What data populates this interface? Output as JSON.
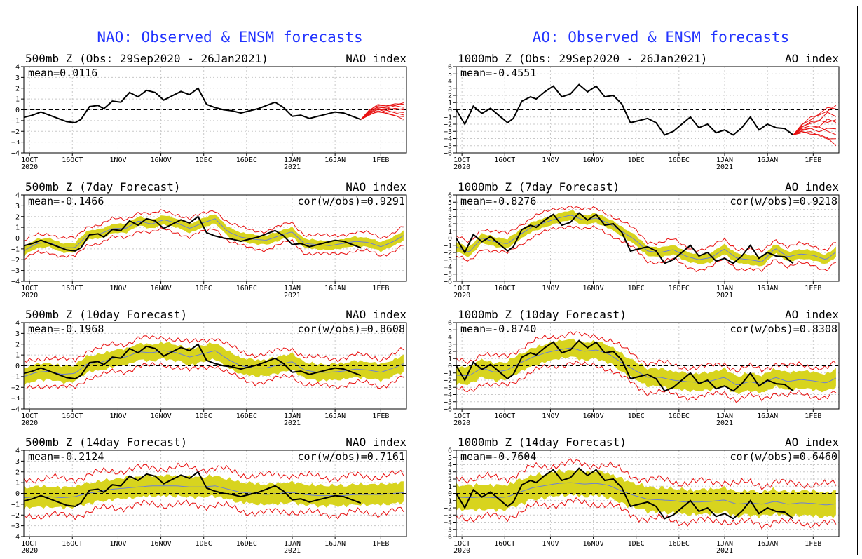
{
  "colors": {
    "obs": "#000000",
    "ensemble": "#e81010",
    "spread": "#d8d41e",
    "ens_mean": "#6b7fd6",
    "title": "#2233ff",
    "grid": "#c8c8c8",
    "frame": "#000000"
  },
  "panels": [
    {
      "title": "NAO: Observed & ENSM forecasts",
      "subplots": [
        {
          "left_label": "500mb Z (Obs: 29Sep2020 - 26Jan2021)",
          "right_label": "NAO index",
          "mean_text": "mean=0.0116",
          "cor_text": "",
          "kind": "obs"
        },
        {
          "left_label": "500mb Z (7day Forecast)",
          "right_label": "NAO index",
          "mean_text": "mean=-0.1466",
          "cor_text": "cor(w/obs)=0.9291",
          "kind": "fcst",
          "lead": 7
        },
        {
          "left_label": "500mb Z (10day Forecast)",
          "right_label": "NAO index",
          "mean_text": "mean=-0.1968",
          "cor_text": "cor(w/obs)=0.8608",
          "kind": "fcst",
          "lead": 10
        },
        {
          "left_label": "500mb Z (14day Forecast)",
          "right_label": "NAO index",
          "mean_text": "mean=-0.2124",
          "cor_text": "cor(w/obs)=0.7161",
          "kind": "fcst",
          "lead": 14
        }
      ]
    },
    {
      "title": "AO: Observed & ENSM forecasts",
      "subplots": [
        {
          "left_label": "1000mb Z (Obs: 29Sep2020 - 26Jan2021)",
          "right_label": "AO index",
          "mean_text": "mean=-0.4551",
          "cor_text": "",
          "kind": "obs"
        },
        {
          "left_label": "1000mb Z (7day Forecast)",
          "right_label": "AO index",
          "mean_text": "mean=-0.8276",
          "cor_text": "cor(w/obs)=0.9218",
          "kind": "fcst",
          "lead": 7
        },
        {
          "left_label": "1000mb Z (10day Forecast)",
          "right_label": "AO index",
          "mean_text": "mean=-0.8740",
          "cor_text": "cor(w/obs)=0.8308",
          "kind": "fcst",
          "lead": 10
        },
        {
          "left_label": "1000mb Z (14day Forecast)",
          "right_label": "AO index",
          "mean_text": "mean=-0.7604",
          "cor_text": "cor(w/obs)=0.6460",
          "kind": "fcst",
          "lead": 14
        }
      ]
    }
  ],
  "chart_data": [
    {
      "type": "line",
      "index": "NAO",
      "x_ticks": [
        "1OCT 2020",
        "16OCT",
        "1NOV",
        "16NOV",
        "1DEC",
        "16DEC",
        "1JAN 2021",
        "16JAN",
        "1FEB"
      ],
      "x_tick_days": [
        2,
        17,
        33,
        48,
        63,
        78,
        94,
        109,
        125
      ],
      "xlim_days": [
        0,
        134
      ],
      "ylim": [
        -4,
        4
      ],
      "yticks": [
        -4,
        -3,
        -2,
        -1,
        0,
        1,
        2,
        3,
        4
      ],
      "observed": {
        "x": [
          0,
          3,
          6,
          9,
          12,
          15,
          18,
          20,
          23,
          26,
          28,
          31,
          34,
          37,
          40,
          43,
          46,
          49,
          52,
          55,
          58,
          61,
          64,
          67,
          70,
          73,
          76,
          79,
          82,
          85,
          88,
          91,
          94,
          97,
          100,
          103,
          106,
          109,
          112,
          115,
          118
        ],
        "y": [
          -0.7,
          -0.5,
          -0.2,
          -0.5,
          -0.8,
          -1.1,
          -1.2,
          -0.9,
          0.3,
          0.4,
          0.1,
          0.8,
          0.7,
          1.6,
          1.2,
          1.8,
          1.6,
          0.9,
          1.3,
          1.7,
          1.4,
          2.0,
          0.5,
          0.2,
          0.0,
          -0.1,
          -0.3,
          -0.1,
          0.1,
          0.4,
          0.7,
          0.2,
          -0.6,
          -0.5,
          -0.8,
          -0.6,
          -0.4,
          -0.2,
          -0.3,
          -0.6,
          -0.9
        ]
      },
      "ensemble_projection": {
        "x": [
          118,
          121,
          124,
          127,
          130,
          133
        ],
        "y_min": [
          -0.9,
          -0.5,
          -0.2,
          -0.4,
          -0.6,
          -0.9
        ],
        "y_max": [
          -0.9,
          0.0,
          0.5,
          0.4,
          0.6,
          0.7
        ]
      },
      "forecasts": [
        {
          "lead": "7day",
          "mean": [
            -1.2,
            -0.5,
            -0.4,
            -0.9,
            -0.9,
            0.3,
            0.4,
            0.9,
            0.9,
            1.6,
            1.3,
            1.7,
            1.4,
            0.9,
            1.4,
            1.8,
            0.6,
            0.1,
            -0.1,
            -0.2,
            0.2,
            0.6,
            -0.5,
            -0.6,
            -0.7,
            -0.5,
            -0.3,
            -0.4,
            -0.8,
            -0.3,
            0.4
          ],
          "spread": 0.45,
          "plume": 1.0
        },
        {
          "lead": "10day",
          "mean": [
            -1.0,
            -0.6,
            -0.5,
            -0.8,
            -0.7,
            0.2,
            0.3,
            0.7,
            0.8,
            1.3,
            1.2,
            1.4,
            1.2,
            0.8,
            1.1,
            1.4,
            0.6,
            0.0,
            -0.2,
            -0.2,
            0.1,
            0.4,
            -0.4,
            -0.6,
            -0.6,
            -0.5,
            -0.3,
            -0.4,
            -0.6,
            -0.2,
            0.3
          ],
          "spread": 0.8,
          "plume": 1.5
        },
        {
          "lead": "14day",
          "mean": [
            -0.4,
            -0.3,
            -0.3,
            -0.4,
            -0.3,
            0.0,
            0.2,
            0.4,
            0.5,
            0.6,
            0.7,
            0.7,
            0.7,
            0.6,
            0.6,
            0.7,
            0.4,
            0.1,
            0.0,
            -0.1,
            0.0,
            0.1,
            -0.1,
            -0.2,
            -0.2,
            -0.2,
            -0.1,
            -0.1,
            -0.1,
            0.0,
            0.1
          ],
          "spread": 1.0,
          "plume": 2.0
        }
      ]
    },
    {
      "type": "line",
      "index": "AO",
      "x_ticks": [
        "1OCT 2020",
        "16OCT",
        "1NOV",
        "16NOV",
        "1DEC",
        "16DEC",
        "1JAN 2021",
        "16JAN",
        "1FEB"
      ],
      "x_tick_days": [
        2,
        17,
        33,
        48,
        63,
        78,
        94,
        109,
        125
      ],
      "xlim_days": [
        0,
        134
      ],
      "ylim": [
        -6,
        6
      ],
      "yticks": [
        -6,
        -5,
        -4,
        -3,
        -2,
        -1,
        0,
        1,
        2,
        3,
        4,
        5,
        6
      ],
      "observed": {
        "x": [
          0,
          3,
          6,
          9,
          12,
          15,
          18,
          20,
          23,
          26,
          28,
          31,
          34,
          37,
          40,
          43,
          46,
          49,
          52,
          55,
          58,
          61,
          64,
          67,
          70,
          73,
          76,
          79,
          82,
          85,
          88,
          91,
          94,
          97,
          100,
          103,
          106,
          109,
          112,
          115,
          118
        ],
        "y": [
          0.0,
          -2.0,
          0.5,
          -0.5,
          0.2,
          -0.8,
          -1.8,
          -1.2,
          1.2,
          1.8,
          1.5,
          2.5,
          3.3,
          1.8,
          2.2,
          3.5,
          2.5,
          3.3,
          1.8,
          2.0,
          0.8,
          -1.8,
          -1.5,
          -1.2,
          -1.8,
          -3.5,
          -3.0,
          -2.0,
          -1.0,
          -2.5,
          -2.0,
          -3.2,
          -2.8,
          -3.5,
          -2.5,
          -1.0,
          -2.8,
          -2.0,
          -2.5,
          -2.6,
          -3.5
        ]
      },
      "ensemble_projection": {
        "x": [
          118,
          121,
          124,
          127,
          130,
          133
        ],
        "y_min": [
          -3.5,
          -3.2,
          -3.4,
          -3.8,
          -4.2,
          -5.0
        ],
        "y_max": [
          -3.5,
          -2.0,
          -1.0,
          -0.5,
          0.5,
          0.8
        ]
      },
      "forecasts": [
        {
          "lead": "7day",
          "mean": [
            -1.2,
            -2.0,
            0.0,
            -0.5,
            -0.8,
            0.5,
            1.6,
            2.2,
            2.8,
            3.2,
            2.5,
            2.8,
            2.0,
            0.9,
            -0.2,
            -1.8,
            -2.0,
            -1.6,
            -2.5,
            -3.0,
            -2.7,
            -1.5,
            -2.8,
            -3.0,
            -3.3,
            -1.4,
            -2.6,
            -2.2,
            -2.4,
            -3.0,
            -1.6
          ],
          "spread": 0.7,
          "plume": 1.6
        },
        {
          "lead": "10day",
          "mean": [
            -1.3,
            -1.4,
            -0.3,
            -0.9,
            -0.6,
            0.4,
            1.2,
            1.8,
            2.2,
            2.5,
            2.0,
            2.2,
            1.6,
            0.4,
            -0.6,
            -1.6,
            -1.6,
            -2.0,
            -2.2,
            -2.3,
            -2.1,
            -1.6,
            -2.7,
            -2.2,
            -2.6,
            -1.6,
            -2.2,
            -1.9,
            -2.1,
            -2.4,
            -1.5
          ],
          "spread": 1.3,
          "plume": 2.4
        },
        {
          "lead": "14day",
          "mean": [
            -0.5,
            -0.6,
            -0.5,
            -0.6,
            -0.5,
            0.2,
            0.8,
            1.1,
            1.4,
            1.5,
            1.3,
            1.4,
            1.1,
            0.3,
            -0.3,
            -0.8,
            -0.9,
            -1.0,
            -1.2,
            -1.2,
            -1.1,
            -0.9,
            -1.5,
            -1.3,
            -1.5,
            -1.1,
            -1.5,
            -1.3,
            -1.4,
            -1.6,
            -1.4
          ],
          "spread": 1.8,
          "plume": 3.2
        }
      ]
    }
  ]
}
